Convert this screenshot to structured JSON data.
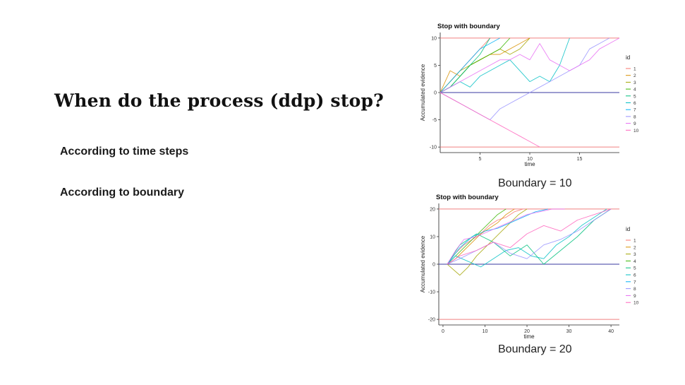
{
  "slide": {
    "title": "When do the process (ddp) stop?",
    "bullets": [
      "According to time steps",
      "According to boundary"
    ],
    "captions": [
      "Boundary = 10",
      "Boundary  = 20"
    ]
  },
  "colors": {
    "boundary_line": "#f08080",
    "zero_line": "#3a3aa0",
    "series": [
      "#F8766D",
      "#D89000",
      "#A3A500",
      "#39B600",
      "#00BF7D",
      "#00BFC4",
      "#00B0F6",
      "#9590FF",
      "#E76BF3",
      "#FF62BC"
    ]
  },
  "chart_data": [
    {
      "type": "line",
      "title": "Stop with boundary",
      "xlabel": "time",
      "ylabel": "Accumulated evidence",
      "xlim": [
        1,
        19
      ],
      "ylim": [
        -10.5,
        10.5
      ],
      "xticks": [
        5,
        10,
        15
      ],
      "yticks": [
        -10,
        -5,
        0,
        5,
        10
      ],
      "boundary": 10,
      "legend_title": "id",
      "legend_position": "right",
      "grid": false,
      "series": [
        {
          "name": "1",
          "x": [
            1,
            2,
            3,
            4,
            5,
            6
          ],
          "y": [
            0,
            2,
            4,
            6,
            8,
            10
          ]
        },
        {
          "name": "2",
          "x": [
            1,
            2,
            3,
            4,
            5,
            6,
            7,
            8,
            9,
            10
          ],
          "y": [
            0,
            4,
            3,
            5,
            6,
            7,
            7,
            8,
            9,
            10
          ]
        },
        {
          "name": "3",
          "x": [
            1,
            2,
            3,
            4,
            5,
            6,
            7,
            8,
            9,
            10
          ],
          "y": [
            0,
            2,
            4,
            5,
            6,
            7,
            8,
            7,
            8,
            10
          ]
        },
        {
          "name": "4",
          "x": [
            1,
            2,
            3,
            4,
            5,
            6,
            7,
            8
          ],
          "y": [
            0,
            1,
            3,
            5,
            6,
            7,
            8,
            10
          ]
        },
        {
          "name": "5",
          "x": [
            1,
            2,
            3,
            4,
            5,
            6
          ],
          "y": [
            0,
            1,
            3,
            5,
            7,
            10
          ]
        },
        {
          "name": "6",
          "x": [
            1,
            2,
            3,
            4,
            5,
            6,
            7,
            8,
            9,
            10,
            11,
            12,
            13,
            14
          ],
          "y": [
            0,
            1,
            2,
            1,
            3,
            4,
            5,
            6,
            4,
            2,
            3,
            2,
            5,
            10
          ]
        },
        {
          "name": "7",
          "x": [
            1,
            2,
            3,
            4,
            5,
            6,
            7
          ],
          "y": [
            0,
            2,
            4,
            6,
            8,
            9,
            10
          ]
        },
        {
          "name": "8",
          "x": [
            1,
            2,
            3,
            4,
            5,
            6,
            7,
            8,
            9,
            10,
            11,
            12,
            13,
            14,
            15,
            16,
            17,
            18
          ],
          "y": [
            0,
            -1,
            -2,
            -3,
            -4,
            -5,
            -3,
            -2,
            -1,
            0,
            1,
            2,
            3,
            4,
            5,
            8,
            9,
            10
          ]
        },
        {
          "name": "9",
          "x": [
            1,
            2,
            3,
            4,
            5,
            6,
            7,
            8,
            9,
            10,
            11,
            12,
            13,
            14,
            15,
            16,
            17,
            18,
            19
          ],
          "y": [
            0,
            1,
            2,
            3,
            4,
            5,
            6,
            6,
            7,
            6,
            9,
            6,
            5,
            4,
            5,
            6,
            8,
            9,
            10
          ]
        },
        {
          "name": "10",
          "x": [
            1,
            2,
            3,
            4,
            5,
            6,
            7,
            8,
            9,
            10,
            11
          ],
          "y": [
            0,
            -1,
            -2,
            -3,
            -4,
            -5,
            -6,
            -7,
            -8,
            -9,
            -10
          ]
        }
      ]
    },
    {
      "type": "line",
      "title": "Stop with boundary",
      "xlabel": "time",
      "ylabel": "Accumulated evidence",
      "xlim": [
        -1,
        42
      ],
      "ylim": [
        -21,
        21
      ],
      "xticks": [
        0,
        10,
        20,
        30,
        40
      ],
      "yticks": [
        -20,
        -10,
        0,
        10,
        20
      ],
      "boundary": 20,
      "legend_title": "id",
      "legend_position": "right",
      "grid": false,
      "series": [
        {
          "name": "1",
          "x": [
            1,
            3,
            5,
            7,
            9,
            11,
            13,
            15,
            17,
            19
          ],
          "y": [
            0,
            4,
            7,
            9,
            11,
            14,
            16,
            17,
            19,
            20
          ]
        },
        {
          "name": "2",
          "x": [
            1,
            3,
            5,
            7,
            9,
            11,
            13,
            15,
            17
          ],
          "y": [
            0,
            2,
            5,
            8,
            11,
            13,
            15,
            18,
            20
          ]
        },
        {
          "name": "3",
          "x": [
            1,
            4,
            6,
            8,
            10,
            12,
            14,
            16,
            18,
            20
          ],
          "y": [
            0,
            -4,
            -1,
            3,
            6,
            9,
            12,
            15,
            18,
            20
          ]
        },
        {
          "name": "4",
          "x": [
            1,
            3,
            5,
            7,
            9,
            11,
            13,
            15
          ],
          "y": [
            0,
            3,
            6,
            9,
            12,
            15,
            18,
            20
          ]
        },
        {
          "name": "5",
          "x": [
            1,
            4,
            8,
            12,
            16,
            20,
            24,
            28,
            32,
            36,
            40
          ],
          "y": [
            0,
            7,
            11,
            8,
            3,
            7,
            0,
            5,
            10,
            16,
            20
          ]
        },
        {
          "name": "6",
          "x": [
            1,
            3,
            6,
            9,
            12,
            15,
            18,
            21,
            24,
            27,
            30,
            33,
            36,
            39
          ],
          "y": [
            0,
            3,
            1,
            -1,
            2,
            5,
            6,
            3,
            2,
            7,
            10,
            14,
            17,
            20
          ]
        },
        {
          "name": "7",
          "x": [
            1,
            4,
            7,
            10,
            13,
            16,
            19,
            22,
            25
          ],
          "y": [
            0,
            6,
            10,
            12,
            13,
            15,
            17,
            19,
            20
          ]
        },
        {
          "name": "8",
          "x": [
            1,
            4,
            8,
            12,
            16,
            20,
            24,
            28,
            32,
            36,
            40
          ],
          "y": [
            0,
            2,
            5,
            8,
            4,
            2,
            7,
            9,
            12,
            16,
            20
          ]
        },
        {
          "name": "9",
          "x": [
            1,
            3,
            5,
            8,
            11,
            14,
            17,
            20,
            23,
            26,
            29
          ],
          "y": [
            0,
            5,
            9,
            10,
            12,
            14,
            16,
            18,
            19,
            20,
            20
          ]
        },
        {
          "name": "10",
          "x": [
            1,
            4,
            8,
            12,
            16,
            20,
            24,
            28,
            32,
            36,
            40
          ],
          "y": [
            0,
            3,
            5,
            8,
            6,
            11,
            14,
            12,
            16,
            18,
            20
          ]
        }
      ]
    }
  ]
}
